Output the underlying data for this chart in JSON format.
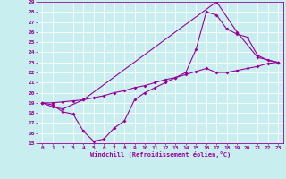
{
  "xlabel": "Windchill (Refroidissement éolien,°C)",
  "bg_color": "#c8eef0",
  "grid_color": "#ffffff",
  "line_color": "#990099",
  "xlim": [
    -0.5,
    23.5
  ],
  "ylim": [
    15,
    29
  ],
  "xticks": [
    0,
    1,
    2,
    3,
    4,
    5,
    6,
    7,
    8,
    9,
    10,
    11,
    12,
    13,
    14,
    15,
    16,
    17,
    18,
    19,
    20,
    21,
    22,
    23
  ],
  "yticks": [
    15,
    16,
    17,
    18,
    19,
    20,
    21,
    22,
    23,
    24,
    25,
    26,
    27,
    28,
    29
  ],
  "line1_x": [
    0,
    1,
    2,
    3,
    4,
    5,
    6,
    7,
    8,
    9,
    10,
    11,
    12,
    13,
    14,
    15,
    16,
    17,
    18,
    19,
    20,
    21,
    22,
    23
  ],
  "line1_y": [
    19.0,
    18.8,
    18.1,
    17.9,
    16.2,
    15.2,
    15.4,
    16.5,
    17.2,
    19.3,
    20.0,
    20.5,
    21.0,
    21.5,
    22.0,
    24.3,
    28.0,
    27.7,
    26.3,
    25.8,
    25.5,
    23.7,
    23.2,
    23.0
  ],
  "line2_x": [
    0,
    1,
    2,
    3,
    4,
    5,
    6,
    7,
    8,
    9,
    10,
    11,
    12,
    13,
    14,
    15,
    16,
    17,
    18,
    19,
    20,
    21,
    22,
    23
  ],
  "line2_y": [
    19.0,
    19.0,
    19.1,
    19.2,
    19.3,
    19.5,
    19.7,
    20.0,
    20.2,
    20.5,
    20.7,
    21.0,
    21.3,
    21.5,
    21.8,
    22.1,
    22.4,
    22.0,
    22.0,
    22.2,
    22.4,
    22.6,
    22.9,
    23.0
  ],
  "line3_x": [
    0,
    1,
    2,
    4,
    17,
    19,
    21,
    23
  ],
  "line3_y": [
    19.0,
    18.6,
    18.4,
    19.3,
    29.0,
    26.0,
    23.5,
    23.0
  ]
}
